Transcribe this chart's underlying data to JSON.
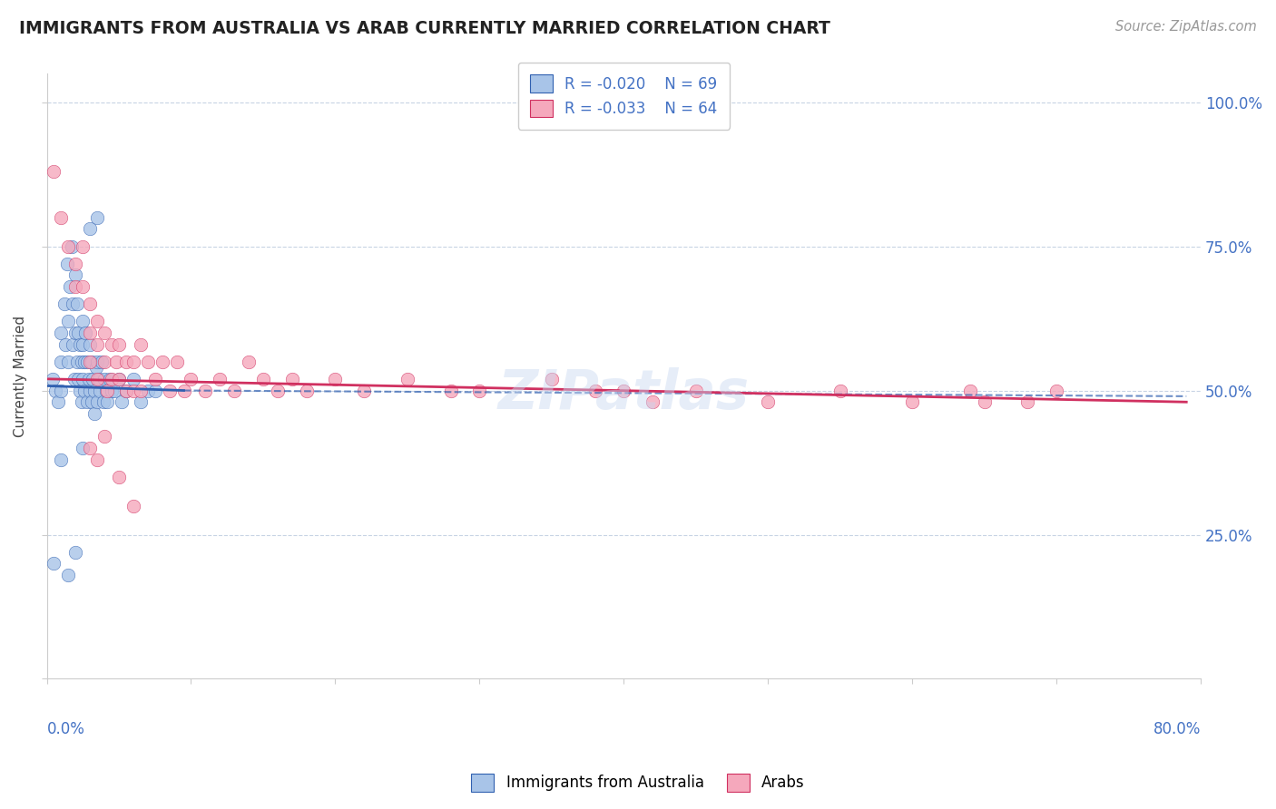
{
  "title": "IMMIGRANTS FROM AUSTRALIA VS ARAB CURRENTLY MARRIED CORRELATION CHART",
  "source": "Source: ZipAtlas.com",
  "ylabel": "Currently Married",
  "legend_label1": "Immigrants from Australia",
  "legend_label2": "Arabs",
  "r1": -0.02,
  "n1": 69,
  "r2": -0.033,
  "n2": 64,
  "color1": "#a8c4e8",
  "color2": "#f5a8bc",
  "trendline1_color": "#3060b0",
  "trendline2_color": "#d03060",
  "xlim": [
    0.0,
    0.8
  ],
  "ylim": [
    0.0,
    1.05
  ],
  "blue_points_x": [
    0.004,
    0.006,
    0.008,
    0.01,
    0.01,
    0.01,
    0.012,
    0.013,
    0.014,
    0.015,
    0.015,
    0.016,
    0.017,
    0.018,
    0.018,
    0.019,
    0.02,
    0.02,
    0.021,
    0.021,
    0.022,
    0.022,
    0.023,
    0.023,
    0.024,
    0.024,
    0.025,
    0.025,
    0.025,
    0.026,
    0.026,
    0.027,
    0.028,
    0.028,
    0.029,
    0.03,
    0.03,
    0.031,
    0.031,
    0.032,
    0.033,
    0.033,
    0.034,
    0.035,
    0.035,
    0.036,
    0.037,
    0.038,
    0.039,
    0.04,
    0.041,
    0.042,
    0.044,
    0.045,
    0.047,
    0.05,
    0.052,
    0.055,
    0.06,
    0.065,
    0.07,
    0.075,
    0.005,
    0.01,
    0.015,
    0.02,
    0.025,
    0.03,
    0.035
  ],
  "blue_points_y": [
    0.52,
    0.5,
    0.48,
    0.55,
    0.6,
    0.5,
    0.65,
    0.58,
    0.72,
    0.62,
    0.55,
    0.68,
    0.75,
    0.58,
    0.65,
    0.52,
    0.7,
    0.6,
    0.65,
    0.55,
    0.6,
    0.52,
    0.58,
    0.5,
    0.55,
    0.48,
    0.62,
    0.58,
    0.52,
    0.55,
    0.5,
    0.6,
    0.55,
    0.48,
    0.52,
    0.58,
    0.5,
    0.55,
    0.48,
    0.52,
    0.5,
    0.46,
    0.54,
    0.55,
    0.48,
    0.52,
    0.5,
    0.55,
    0.48,
    0.52,
    0.5,
    0.48,
    0.52,
    0.5,
    0.5,
    0.52,
    0.48,
    0.5,
    0.52,
    0.48,
    0.5,
    0.5,
    0.2,
    0.38,
    0.18,
    0.22,
    0.4,
    0.78,
    0.8
  ],
  "pink_points_x": [
    0.005,
    0.01,
    0.015,
    0.02,
    0.02,
    0.025,
    0.025,
    0.03,
    0.03,
    0.03,
    0.035,
    0.035,
    0.035,
    0.04,
    0.04,
    0.042,
    0.045,
    0.045,
    0.048,
    0.05,
    0.05,
    0.055,
    0.055,
    0.06,
    0.06,
    0.065,
    0.065,
    0.07,
    0.075,
    0.08,
    0.085,
    0.09,
    0.095,
    0.1,
    0.11,
    0.12,
    0.13,
    0.14,
    0.15,
    0.16,
    0.17,
    0.18,
    0.2,
    0.22,
    0.25,
    0.28,
    0.3,
    0.35,
    0.38,
    0.4,
    0.42,
    0.45,
    0.5,
    0.55,
    0.6,
    0.64,
    0.68,
    0.7,
    0.03,
    0.035,
    0.04,
    0.05,
    0.06,
    0.65
  ],
  "pink_points_y": [
    0.88,
    0.8,
    0.75,
    0.72,
    0.68,
    0.75,
    0.68,
    0.65,
    0.6,
    0.55,
    0.62,
    0.58,
    0.52,
    0.6,
    0.55,
    0.5,
    0.58,
    0.52,
    0.55,
    0.58,
    0.52,
    0.55,
    0.5,
    0.55,
    0.5,
    0.58,
    0.5,
    0.55,
    0.52,
    0.55,
    0.5,
    0.55,
    0.5,
    0.52,
    0.5,
    0.52,
    0.5,
    0.55,
    0.52,
    0.5,
    0.52,
    0.5,
    0.52,
    0.5,
    0.52,
    0.5,
    0.5,
    0.52,
    0.5,
    0.5,
    0.48,
    0.5,
    0.48,
    0.5,
    0.48,
    0.5,
    0.48,
    0.5,
    0.4,
    0.38,
    0.42,
    0.35,
    0.3,
    0.48
  ],
  "trendline1_x_start": 0.0,
  "trendline1_x_end": 0.095,
  "trendline1_y_start": 0.508,
  "trendline1_y_end": 0.5,
  "trendline1_dashed_x_start": 0.095,
  "trendline1_dashed_x_end": 0.79,
  "trendline1_dashed_y_start": 0.5,
  "trendline1_dashed_y_end": 0.49,
  "trendline2_x_start": 0.0,
  "trendline2_x_end": 0.79,
  "trendline2_y_start": 0.52,
  "trendline2_y_end": 0.48
}
